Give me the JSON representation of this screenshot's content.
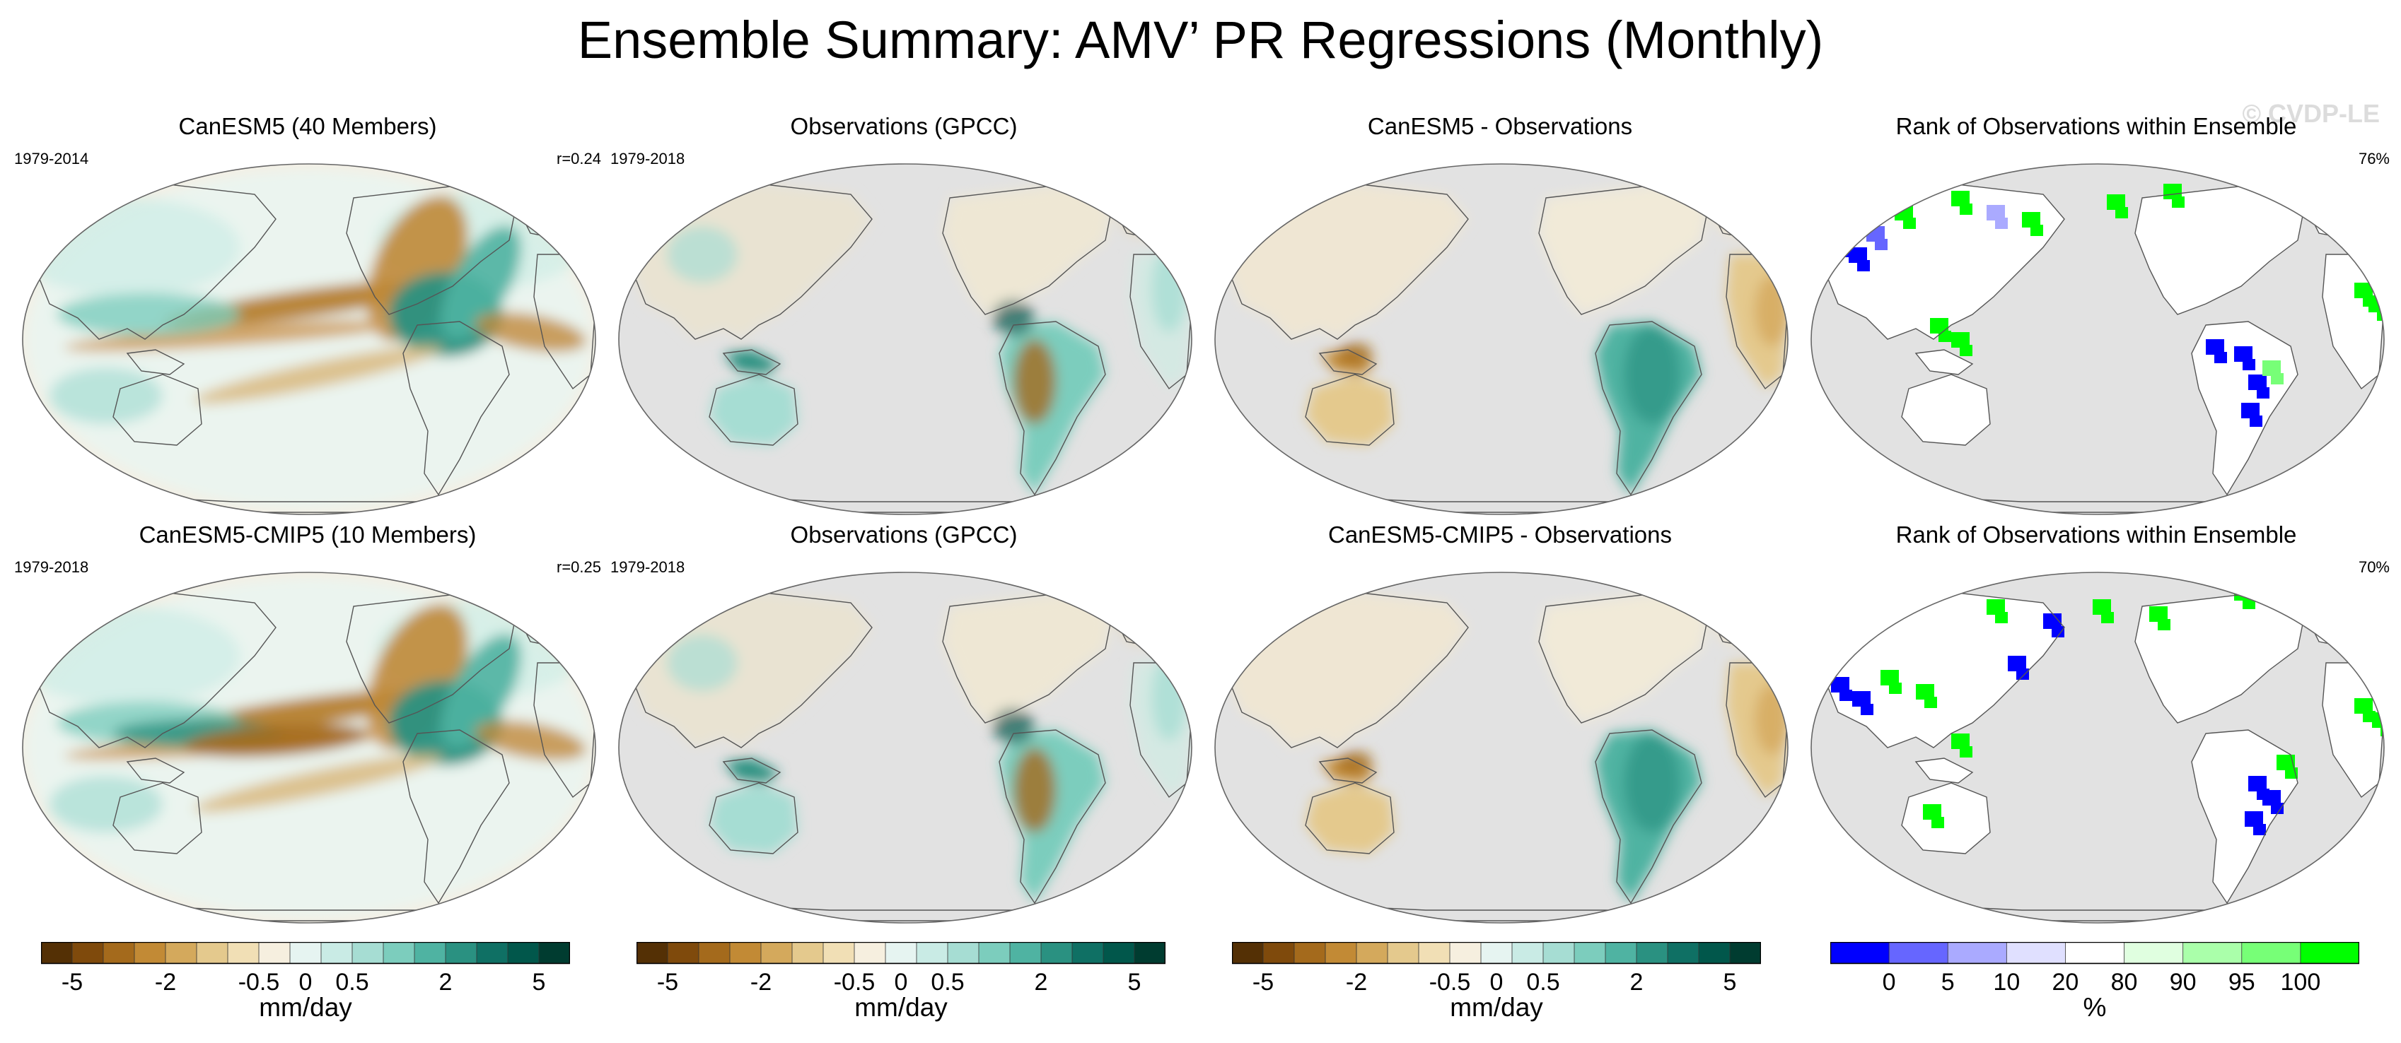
{
  "title": "Ensemble Summary: AMV’ PR Regressions (Monthly)",
  "watermark": "© CVDP-LE",
  "rows": [
    {
      "panels": [
        {
          "title": "CanESM5 (40 Members)",
          "left": "1979-2014",
          "right": "r=0.24",
          "kind": "model"
        },
        {
          "title": "Observations (GPCC)",
          "left": "1979-2018",
          "right": "",
          "kind": "obs"
        },
        {
          "title": "CanESM5 - Observations",
          "left": "",
          "right": "",
          "kind": "diff"
        },
        {
          "title": "Rank of Observations within Ensemble",
          "left": "",
          "right": "76%",
          "kind": "rank"
        }
      ]
    },
    {
      "panels": [
        {
          "title": "CanESM5-CMIP5 (10 Members)",
          "left": "1979-2018",
          "right": "r=0.25",
          "kind": "model"
        },
        {
          "title": "Observations (GPCC)",
          "left": "1979-2018",
          "right": "",
          "kind": "obs"
        },
        {
          "title": "CanESM5-CMIP5 - Observations",
          "left": "",
          "right": "",
          "kind": "diff"
        },
        {
          "title": "Rank of Observations within Ensemble",
          "left": "",
          "right": "70%",
          "kind": "rank"
        }
      ]
    }
  ],
  "colorbars": [
    {
      "label": "mm/day",
      "colors": [
        "#543005",
        "#7f4a0c",
        "#a46a1c",
        "#c28a35",
        "#d4a95c",
        "#e4c98d",
        "#f1dfb5",
        "#f6efdf",
        "#e6f4f1",
        "#c9ebe5",
        "#a6ddd3",
        "#7ccdbd",
        "#4fb3a2",
        "#2a9181",
        "#0f7064",
        "#01574b",
        "#003c30"
      ],
      "tick_labels": [
        "-5",
        "-2",
        "-0.5",
        "0",
        "0.5",
        "2",
        "5"
      ],
      "tick_boundaries": [
        1,
        4,
        7,
        8.5,
        10,
        13,
        16
      ]
    },
    {
      "label": "mm/day",
      "colors": [
        "#543005",
        "#7f4a0c",
        "#a46a1c",
        "#c28a35",
        "#d4a95c",
        "#e4c98d",
        "#f1dfb5",
        "#f6efdf",
        "#e6f4f1",
        "#c9ebe5",
        "#a6ddd3",
        "#7ccdbd",
        "#4fb3a2",
        "#2a9181",
        "#0f7064",
        "#01574b",
        "#003c30"
      ],
      "tick_labels": [
        "-5",
        "-2",
        "-0.5",
        "0",
        "0.5",
        "2",
        "5"
      ],
      "tick_boundaries": [
        1,
        4,
        7,
        8.5,
        10,
        13,
        16
      ]
    },
    {
      "label": "mm/day",
      "colors": [
        "#543005",
        "#7f4a0c",
        "#a46a1c",
        "#c28a35",
        "#d4a95c",
        "#e4c98d",
        "#f1dfb5",
        "#f6efdf",
        "#e6f4f1",
        "#c9ebe5",
        "#a6ddd3",
        "#7ccdbd",
        "#4fb3a2",
        "#2a9181",
        "#0f7064",
        "#01574b",
        "#003c30"
      ],
      "tick_labels": [
        "-5",
        "-2",
        "-0.5",
        "0",
        "0.5",
        "2",
        "5"
      ],
      "tick_boundaries": [
        1,
        4,
        7,
        8.5,
        10,
        13,
        16
      ]
    },
    {
      "label": "%",
      "colors": [
        "#0000ff",
        "#6666ff",
        "#aaaaff",
        "#e0e0ff",
        "#ffffff",
        "#e0ffe0",
        "#aaffaa",
        "#77ff77",
        "#00ff00"
      ],
      "tick_labels": [
        "0",
        "5",
        "10",
        "20",
        "80",
        "90",
        "95",
        "100"
      ],
      "tick_boundaries": [
        1,
        2,
        3,
        4,
        5,
        6,
        7,
        8
      ]
    }
  ],
  "chart_data": {
    "type": "map-grid",
    "title": "Ensemble Summary: AMV’ PR Regressions (Monthly)",
    "variable": "PR regression on AMV",
    "units": "mm/day",
    "rank_units": "%",
    "panels": [
      {
        "row": 1,
        "col": 1,
        "title": "CanESM5 (40 Members)",
        "period": "1979-2014",
        "pattern_correlation": 0.24
      },
      {
        "row": 1,
        "col": 2,
        "title": "Observations (GPCC)",
        "period": "1979-2018"
      },
      {
        "row": 1,
        "col": 3,
        "title": "CanESM5 - Observations"
      },
      {
        "row": 1,
        "col": 4,
        "title": "Rank of Observations within Ensemble",
        "rank_percent": 76
      },
      {
        "row": 2,
        "col": 1,
        "title": "CanESM5-CMIP5 (10 Members)",
        "period": "1979-2018",
        "pattern_correlation": 0.25
      },
      {
        "row": 2,
        "col": 2,
        "title": "Observations (GPCC)",
        "period": "1979-2018"
      },
      {
        "row": 2,
        "col": 3,
        "title": "CanESM5-CMIP5 - Observations"
      },
      {
        "row": 2,
        "col": 4,
        "title": "Rank of Observations within Ensemble",
        "rank_percent": 70
      }
    ],
    "colorbar_levels_mm_day": [
      -5,
      -2,
      -0.5,
      0,
      0.5,
      2,
      5
    ],
    "colorbar_levels_percent": [
      0,
      5,
      10,
      20,
      80,
      90,
      95,
      100
    ]
  }
}
